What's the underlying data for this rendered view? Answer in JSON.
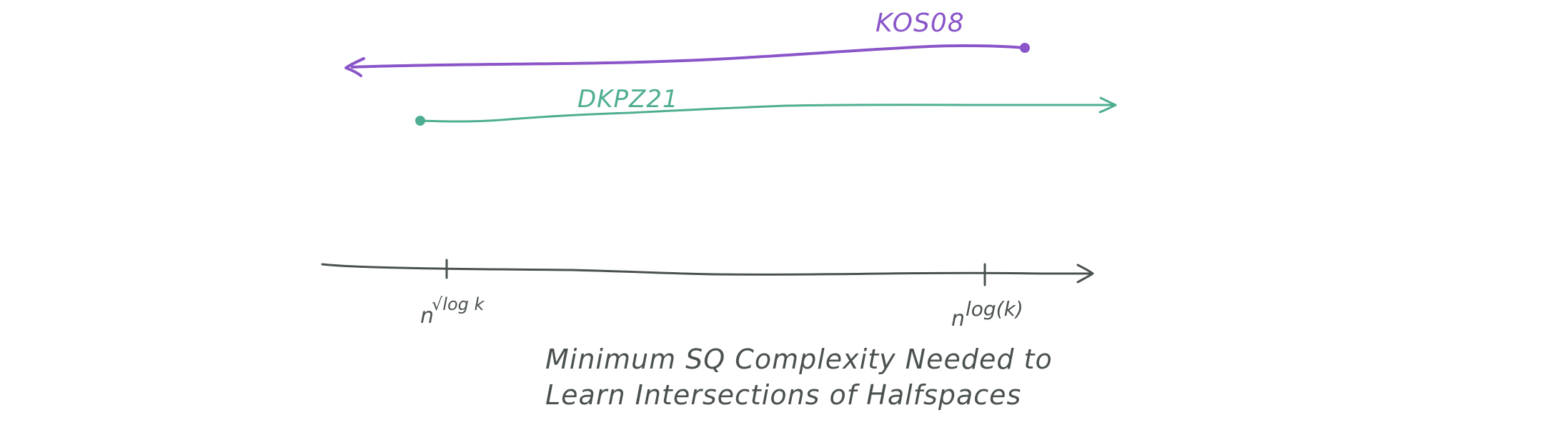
{
  "colors": {
    "background": "#ffffff",
    "axis": "#4a5150",
    "kos08": "#8a55c8",
    "dkpz21": "#4fae92"
  },
  "arrows": {
    "kos08": {
      "label": "KOS08",
      "direction": "left"
    },
    "dkpz21": {
      "label": "DKPZ21",
      "direction": "right"
    }
  },
  "axis": {
    "tick_left": {
      "base": "n",
      "exponent": "√log k"
    },
    "tick_right": {
      "base": "n",
      "exponent": "log(k)"
    }
  },
  "caption": {
    "line1": "Minimum SQ Complexity Needed to",
    "line2": "Learn Intersections of Halfspaces"
  }
}
